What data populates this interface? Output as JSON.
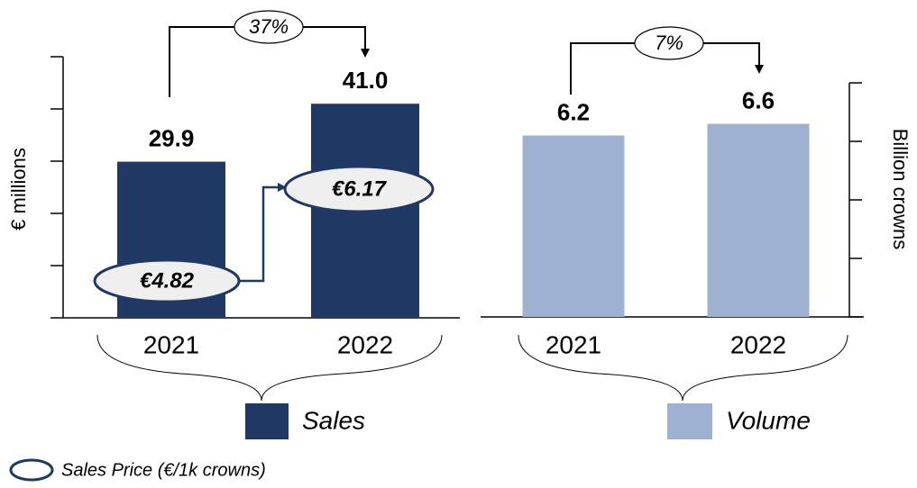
{
  "chart_data": [
    {
      "type": "bar",
      "categories": [
        "2021",
        "2022"
      ],
      "series": [
        {
          "name": "Sales",
          "color": "#203864",
          "values": [
            29.9,
            41.0
          ],
          "value_labels": [
            "29.9",
            "41.0"
          ]
        }
      ],
      "ylim": [
        0,
        50
      ],
      "yticks": [
        0,
        10,
        20,
        30,
        40,
        50
      ],
      "axis_side": "left",
      "y_label": "€ millions",
      "growth_label": "37%",
      "price": {
        "name": "Sales Price (€/1k crowns)",
        "values": [
          4.82,
          6.17
        ],
        "value_labels": [
          "€4.82",
          "€6.17"
        ]
      }
    },
    {
      "type": "bar",
      "categories": [
        "2021",
        "2022"
      ],
      "series": [
        {
          "name": "Volume",
          "color": "#9fb1d0",
          "values": [
            6.2,
            6.6
          ]
        }
      ],
      "ylim": [
        0,
        8
      ],
      "yticks": [
        0,
        2,
        4,
        6,
        8
      ],
      "axis_side": "right",
      "y_label": "Billion crowns",
      "growth_label": "7%"
    }
  ]
}
